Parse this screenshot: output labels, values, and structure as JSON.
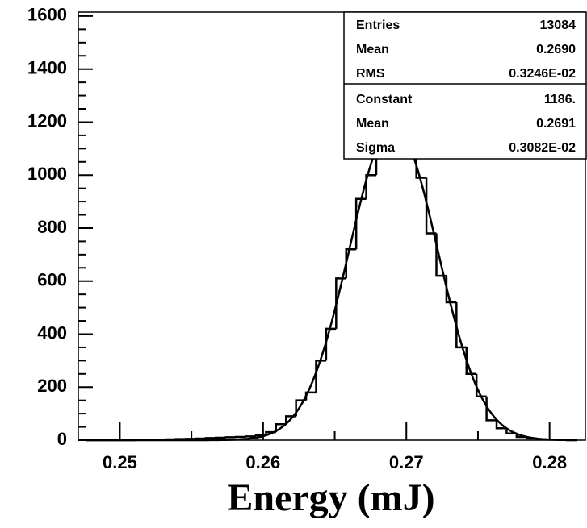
{
  "chart_data": {
    "type": "histogram",
    "x_label": "Energy (mJ)",
    "bins": [
      0.2476,
      0.2483,
      0.249,
      0.2497,
      0.2504,
      0.2511,
      0.2518,
      0.2525,
      0.2532,
      0.2539,
      0.2546,
      0.2553,
      0.256,
      0.2567,
      0.2574,
      0.2581,
      0.2588,
      0.2595,
      0.2602,
      0.2609,
      0.2616,
      0.2623,
      0.263,
      0.2637,
      0.2644,
      0.2651,
      0.2658,
      0.2665,
      0.2672,
      0.2679,
      0.2686,
      0.2693,
      0.27,
      0.2707,
      0.2714,
      0.2721,
      0.2728,
      0.2735,
      0.2742,
      0.2749,
      0.2756,
      0.2763,
      0.277,
      0.2777,
      0.2784,
      0.2791,
      0.2798,
      0.2805,
      0.2812,
      0.2819
    ],
    "values": [
      0,
      0,
      0,
      0,
      0,
      1,
      1,
      2,
      3,
      4,
      5,
      6,
      8,
      9,
      11,
      12,
      14,
      18,
      30,
      60,
      90,
      150,
      180,
      300,
      420,
      610,
      720,
      910,
      1000,
      1070,
      1160,
      1200,
      1110,
      990,
      780,
      620,
      520,
      350,
      250,
      165,
      75,
      45,
      25,
      12,
      6,
      3,
      2,
      1,
      0
    ],
    "color": "#000000",
    "xlim": [
      0.2471,
      0.2825
    ],
    "xticks": [
      0.25,
      0.26,
      0.27,
      0.28
    ],
    "ylim": [
      0,
      1615
    ],
    "yticks": [
      0,
      200,
      400,
      600,
      800,
      1000,
      1200,
      1400,
      1600
    ],
    "stats": [
      {
        "name": "Entries",
        "value": 13084
      },
      {
        "name": "Mean",
        "value": 0.269,
        "label": "0.2690"
      },
      {
        "name": "RMS",
        "value": 0.003246,
        "label": "0.3246E-02"
      }
    ],
    "fit": [
      {
        "name": "Constant",
        "value": 1186,
        "label": "1186."
      },
      {
        "name": "Mean",
        "value": 0.2691
      },
      {
        "name": "Sigma",
        "value": 0.003082,
        "label": "0.3082E-02"
      }
    ]
  }
}
